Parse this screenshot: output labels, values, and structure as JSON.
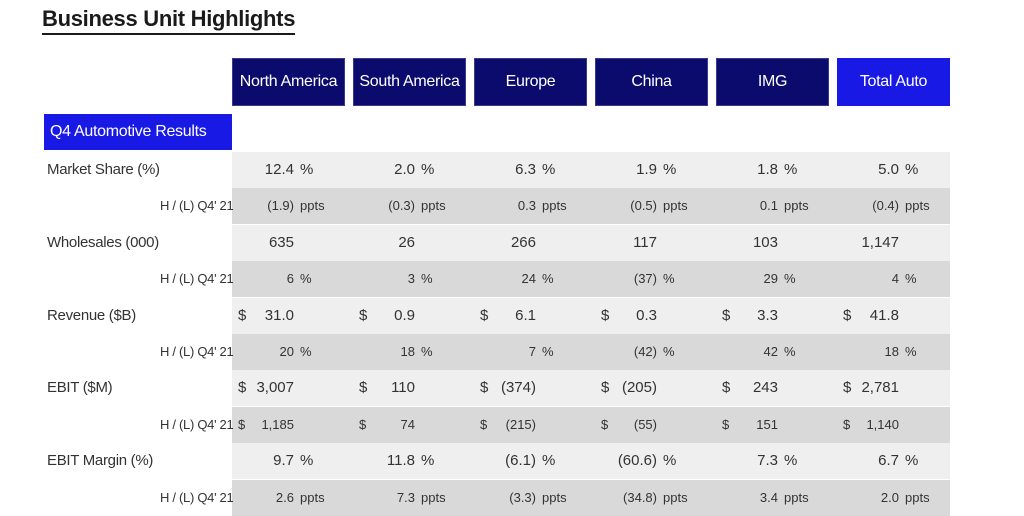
{
  "title": "Business Unit Highlights",
  "columns": [
    "North America",
    "South America",
    "Europe",
    "China",
    "IMG",
    "Total Auto"
  ],
  "section_label": "Q4 Automotive Results",
  "colors": {
    "header_dark": "#0b0b6e",
    "header_accent": "#1919e6",
    "band_light": "#efefef",
    "band_dark": "#d9d9d9"
  },
  "rows": [
    {
      "label": "Market Share (%)",
      "type": "main",
      "cells": [
        {
          "dollar": "",
          "value": "12.4",
          "unit": "%"
        },
        {
          "dollar": "",
          "value": "2.0",
          "unit": "%"
        },
        {
          "dollar": "",
          "value": "6.3",
          "unit": "%"
        },
        {
          "dollar": "",
          "value": "1.9",
          "unit": "%"
        },
        {
          "dollar": "",
          "value": "1.8",
          "unit": "%"
        },
        {
          "dollar": "",
          "value": "5.0",
          "unit": "%"
        }
      ]
    },
    {
      "label": "H / (L) Q4' 21",
      "type": "sub",
      "cells": [
        {
          "dollar": "",
          "value": "(1.9)",
          "unit": "ppts"
        },
        {
          "dollar": "",
          "value": "(0.3)",
          "unit": "ppts"
        },
        {
          "dollar": "",
          "value": "0.3",
          "unit": "ppts"
        },
        {
          "dollar": "",
          "value": "(0.5)",
          "unit": "ppts"
        },
        {
          "dollar": "",
          "value": "0.1",
          "unit": "ppts"
        },
        {
          "dollar": "",
          "value": "(0.4)",
          "unit": "ppts"
        }
      ]
    },
    {
      "label": "Wholesales (000)",
      "type": "main",
      "cells": [
        {
          "dollar": "",
          "value": "635",
          "unit": ""
        },
        {
          "dollar": "",
          "value": "26",
          "unit": ""
        },
        {
          "dollar": "",
          "value": "266",
          "unit": ""
        },
        {
          "dollar": "",
          "value": "117",
          "unit": ""
        },
        {
          "dollar": "",
          "value": "103",
          "unit": ""
        },
        {
          "dollar": "",
          "value": "1,147",
          "unit": ""
        }
      ]
    },
    {
      "label": "H / (L) Q4' 21",
      "type": "sub",
      "cells": [
        {
          "dollar": "",
          "value": "6",
          "unit": "%"
        },
        {
          "dollar": "",
          "value": "3",
          "unit": "%"
        },
        {
          "dollar": "",
          "value": "24",
          "unit": "%"
        },
        {
          "dollar": "",
          "value": "(37)",
          "unit": "%"
        },
        {
          "dollar": "",
          "value": "29",
          "unit": "%"
        },
        {
          "dollar": "",
          "value": "4",
          "unit": "%"
        }
      ]
    },
    {
      "label": "Revenue ($B)",
      "type": "main",
      "cells": [
        {
          "dollar": "$",
          "value": "31.0",
          "unit": ""
        },
        {
          "dollar": "$",
          "value": "0.9",
          "unit": ""
        },
        {
          "dollar": "$",
          "value": "6.1",
          "unit": ""
        },
        {
          "dollar": "$",
          "value": "0.3",
          "unit": ""
        },
        {
          "dollar": "$",
          "value": "3.3",
          "unit": ""
        },
        {
          "dollar": "$",
          "value": "41.8",
          "unit": ""
        }
      ]
    },
    {
      "label": "H / (L) Q4' 21",
      "type": "sub",
      "cells": [
        {
          "dollar": "",
          "value": "20",
          "unit": "%"
        },
        {
          "dollar": "",
          "value": "18",
          "unit": "%"
        },
        {
          "dollar": "",
          "value": "7",
          "unit": "%"
        },
        {
          "dollar": "",
          "value": "(42)",
          "unit": "%"
        },
        {
          "dollar": "",
          "value": "42",
          "unit": "%"
        },
        {
          "dollar": "",
          "value": "18",
          "unit": "%"
        }
      ]
    },
    {
      "label": "EBIT ($M)",
      "type": "main",
      "cells": [
        {
          "dollar": "$",
          "value": "3,007",
          "unit": ""
        },
        {
          "dollar": "$",
          "value": "110",
          "unit": ""
        },
        {
          "dollar": "$",
          "value": "(374)",
          "unit": ""
        },
        {
          "dollar": "$",
          "value": "(205)",
          "unit": ""
        },
        {
          "dollar": "$",
          "value": "243",
          "unit": ""
        },
        {
          "dollar": "$",
          "value": "2,781",
          "unit": ""
        }
      ]
    },
    {
      "label": "H / (L) Q4' 21",
      "type": "sub",
      "cells": [
        {
          "dollar": "$",
          "value": "1,185",
          "unit": ""
        },
        {
          "dollar": "$",
          "value": "74",
          "unit": ""
        },
        {
          "dollar": "$",
          "value": "(215)",
          "unit": ""
        },
        {
          "dollar": "$",
          "value": "(55)",
          "unit": ""
        },
        {
          "dollar": "$",
          "value": "151",
          "unit": ""
        },
        {
          "dollar": "$",
          "value": "1,140",
          "unit": ""
        }
      ]
    },
    {
      "label": "EBIT Margin (%)",
      "type": "main",
      "cells": [
        {
          "dollar": "",
          "value": "9.7",
          "unit": "%"
        },
        {
          "dollar": "",
          "value": "11.8",
          "unit": "%"
        },
        {
          "dollar": "",
          "value": "(6.1)",
          "unit": "%"
        },
        {
          "dollar": "",
          "value": "(60.6)",
          "unit": "%"
        },
        {
          "dollar": "",
          "value": "7.3",
          "unit": "%"
        },
        {
          "dollar": "",
          "value": "6.7",
          "unit": "%"
        }
      ]
    },
    {
      "label": "H / (L) Q4' 21",
      "type": "sub",
      "cells": [
        {
          "dollar": "",
          "value": "2.6",
          "unit": "ppts"
        },
        {
          "dollar": "",
          "value": "7.3",
          "unit": "ppts"
        },
        {
          "dollar": "",
          "value": "(3.3)",
          "unit": "ppts"
        },
        {
          "dollar": "",
          "value": "(34.8)",
          "unit": "ppts"
        },
        {
          "dollar": "",
          "value": "3.4",
          "unit": "ppts"
        },
        {
          "dollar": "",
          "value": "2.0",
          "unit": "ppts"
        }
      ]
    }
  ]
}
